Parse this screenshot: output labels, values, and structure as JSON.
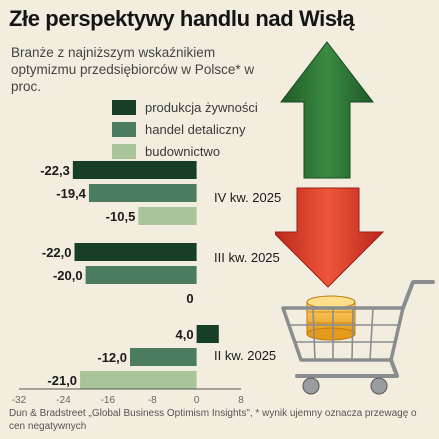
{
  "title": "Złe perspektywy handlu nad Wisłą",
  "subtitle": "Branże z najniższym wskaźnikiem optymizmu przedsiębiorców w Polsce* w proc.",
  "source": "Dun & Bradstreet „Global Business Optimism Insights\", * wynik ujemny oznacza przewagę o cen negatywnych",
  "colors": {
    "background": "#f2eddf",
    "produkcja_zywnosci": "#173f28",
    "handel_detaliczny": "#4b7c60",
    "budownictwo": "#a8c59a",
    "arrow_up": "#2f7a3a",
    "arrow_down": "#e0452f"
  },
  "illustration": {
    "icons": [
      "green-up-arrow-icon",
      "red-down-arrow-icon",
      "shopping-cart-icon",
      "coins-icon"
    ]
  },
  "chart_data": {
    "type": "bar",
    "orientation": "horizontal",
    "categories": [
      "IV kw. 2025",
      "III kw. 2025",
      "II kw. 2025"
    ],
    "series": [
      {
        "name": "produkcja żywności",
        "values": [
          -22.3,
          -22.0,
          4.0
        ],
        "labels": [
          "-22,3",
          "-22,0",
          "4,0"
        ]
      },
      {
        "name": "handel detaliczny",
        "values": [
          -19.4,
          -20.0,
          -12.0
        ],
        "labels": [
          "-19,4",
          "-20,0",
          "-12,0"
        ]
      },
      {
        "name": "budownictwo",
        "values": [
          -10.5,
          0,
          -21.0
        ],
        "labels": [
          "-10,5",
          "0",
          "-21,0"
        ]
      }
    ],
    "xlim": [
      -32,
      8
    ],
    "xticks": [
      -32,
      -24,
      -16,
      -8,
      0,
      8
    ],
    "xtick_labels": [
      "-32",
      "-24",
      "-16",
      "-8",
      "0",
      "8"
    ],
    "legend_position": "top-left",
    "grid": false
  }
}
